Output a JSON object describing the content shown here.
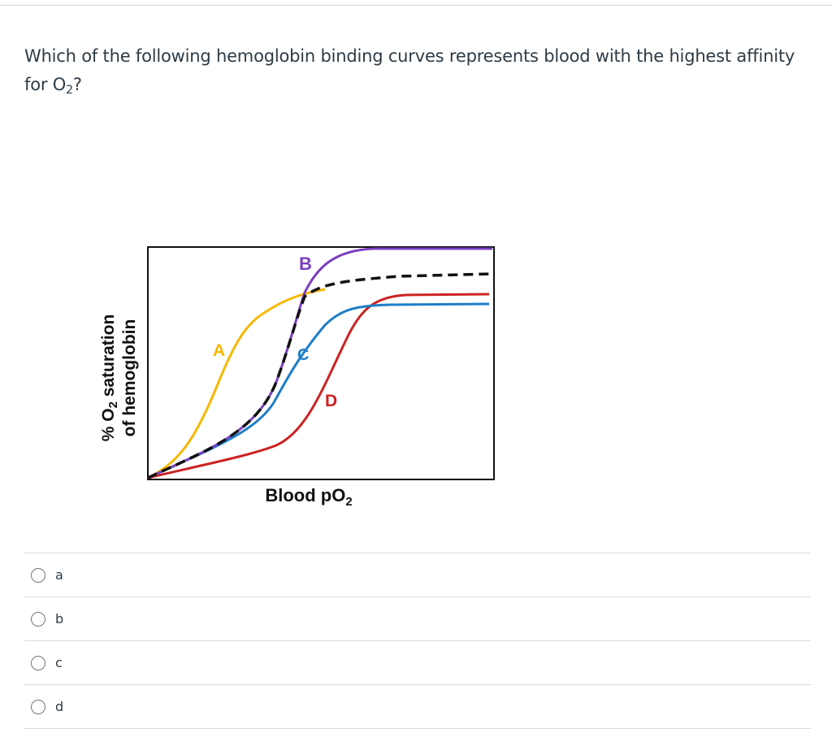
{
  "question": {
    "text_main": "Which of the following hemoglobin binding curves represents blood with the highest affinity for O",
    "text_sub": "2",
    "text_end": "?"
  },
  "figure": {
    "ylabel_line1_pre": "% O",
    "ylabel_line1_sub": "2",
    "ylabel_line1_post": " saturation",
    "ylabel_line2": "of hemoglobin",
    "xlabel_pre": "Blood pO",
    "xlabel_sub": "2",
    "curve_labels": {
      "A": "A",
      "B": "B",
      "C": "C",
      "D": "D"
    },
    "colors": {
      "A": "#f5b800",
      "B": "#7a3fbf",
      "C": "#1f7ec8",
      "D": "#cc2222",
      "reference": "#111111"
    }
  },
  "answers": [
    {
      "label": "a"
    },
    {
      "label": "b"
    },
    {
      "label": "c"
    },
    {
      "label": "d"
    }
  ]
}
